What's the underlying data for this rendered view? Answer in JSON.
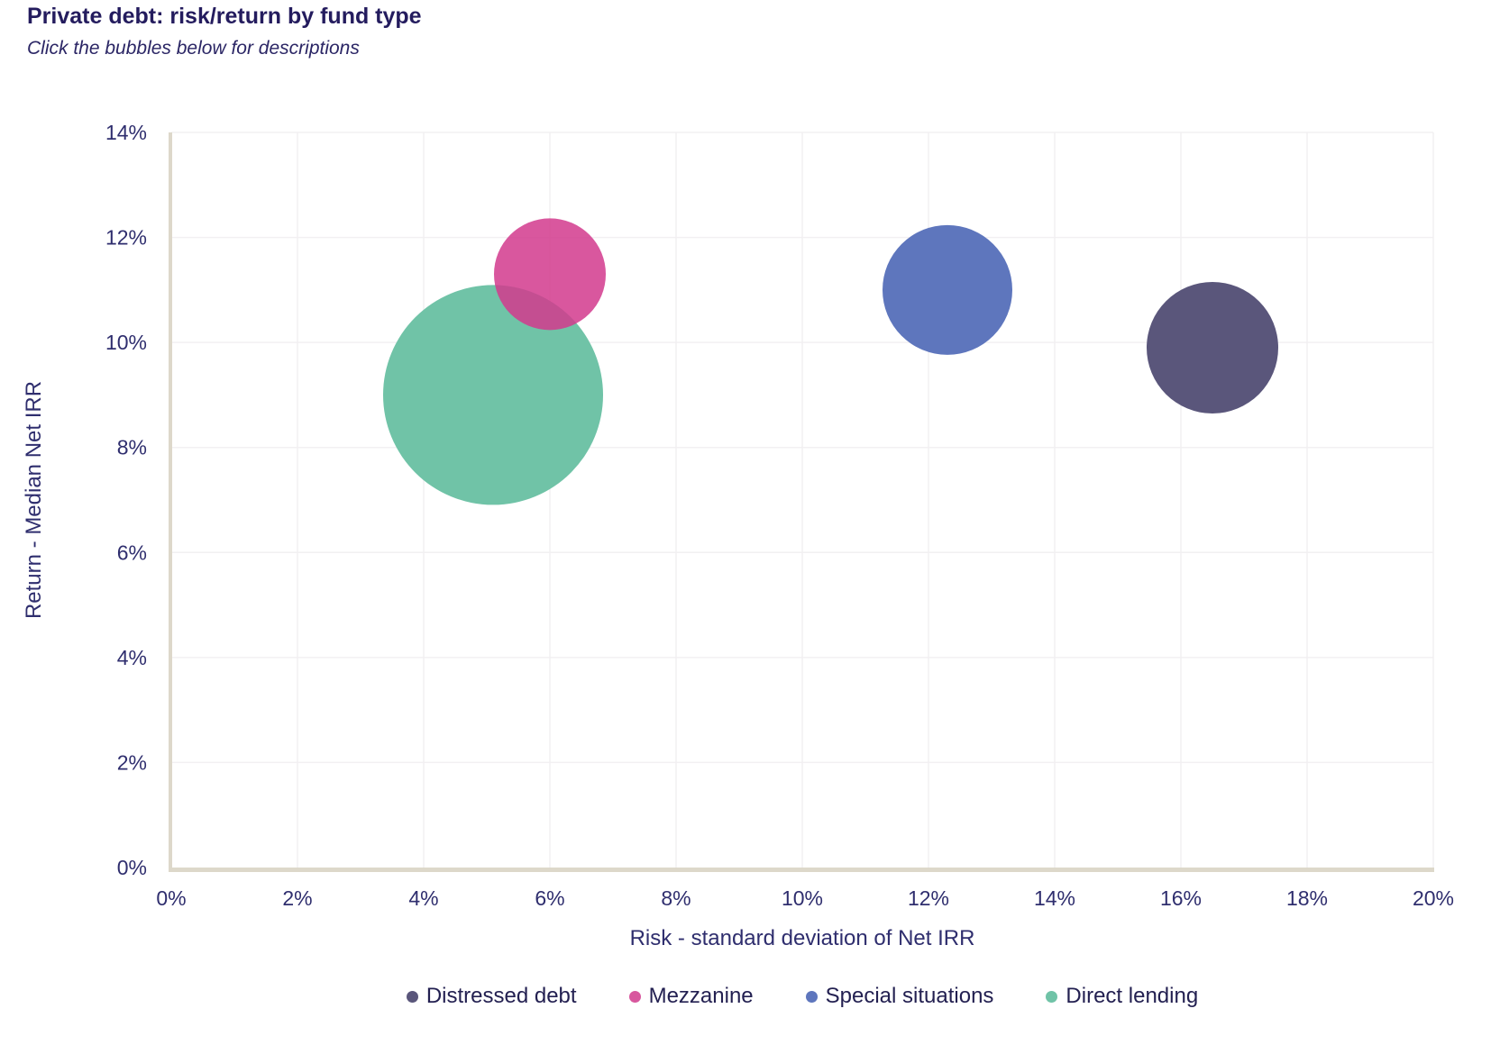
{
  "header": {
    "title": "Private debt: risk/return by fund type",
    "subtitle": "Click the bubbles below for descriptions"
  },
  "chart_data": {
    "type": "scatter",
    "variant": "bubble",
    "title": "Private debt: risk/return by fund type",
    "xlabel": "Risk - standard deviation of Net IRR",
    "ylabel": "Return - Median Net IRR",
    "xlim": [
      0,
      20
    ],
    "ylim": [
      0,
      14
    ],
    "x_ticks": [
      0,
      2,
      4,
      6,
      8,
      10,
      12,
      14,
      16,
      18,
      20
    ],
    "y_ticks": [
      0,
      2,
      4,
      6,
      8,
      10,
      12,
      14
    ],
    "tick_suffix": "%",
    "grid": true,
    "legend_position": "bottom",
    "units": "percent",
    "series": [
      {
        "name": "Distressed debt",
        "x": 16.5,
        "y": 9.9,
        "radius_px": 73,
        "color": "#5a567b",
        "opacity": 1,
        "legend_color": "#5a567b"
      },
      {
        "name": "Mezzanine",
        "x": 6.0,
        "y": 11.3,
        "radius_px": 62,
        "color": "#d23a8d",
        "opacity": 0.85,
        "legend_color": "#d8579e"
      },
      {
        "name": "Special situations",
        "x": 12.3,
        "y": 11.0,
        "radius_px": 72,
        "color": "#5e76bd",
        "opacity": 1,
        "legend_color": "#5e76bd"
      },
      {
        "name": "Direct lending",
        "x": 5.1,
        "y": 9.0,
        "radius_px": 122,
        "color": "#70c3a7",
        "opacity": 1,
        "legend_color": "#70c3a7"
      }
    ],
    "colors": {
      "axis_line": "#ddd8ca",
      "grid_line": "#f2f0f2",
      "tick_text": "#2f2e6e",
      "title_text": "#241c5e"
    }
  }
}
